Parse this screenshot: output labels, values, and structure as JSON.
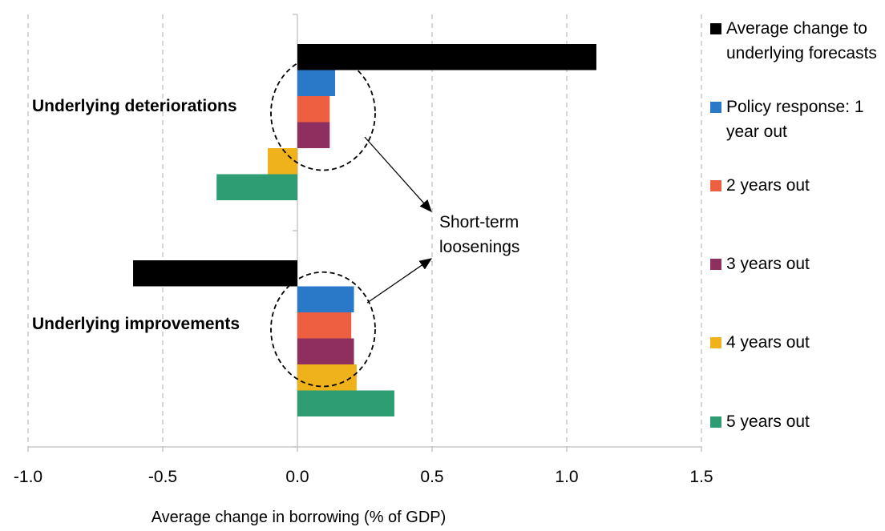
{
  "chart_data": {
    "type": "bar",
    "orientation": "horizontal",
    "title": "",
    "xlabel": "Average change in borrowing (% of GDP)",
    "ylabel": "",
    "xlim": [
      -1.0,
      1.5
    ],
    "xticks": [
      -1.0,
      -0.5,
      0.0,
      0.5,
      1.0,
      1.5
    ],
    "xtick_labels": [
      "-1.0",
      "-0.5",
      "0.0",
      "0.5",
      "1.0",
      "1.5"
    ],
    "grid": "vertical dashed",
    "legend_position": "right",
    "categories": [
      "Underlying deteriorations",
      "Underlying improvements"
    ],
    "series": [
      {
        "name": "Average change to underlying forecasts",
        "color": "#000000",
        "values": [
          1.11,
          -0.61
        ]
      },
      {
        "name": "Policy response: 1 year out",
        "color": "#2a78c8",
        "values": [
          0.14,
          0.21
        ]
      },
      {
        "name": "2 years out",
        "color": "#ee5f41",
        "values": [
          0.12,
          0.2
        ]
      },
      {
        "name": "3 years out",
        "color": "#8e2f5f",
        "values": [
          0.12,
          0.21
        ]
      },
      {
        "name": "4 years out",
        "color": "#f0b21a",
        "values": [
          -0.11,
          0.22
        ]
      },
      {
        "name": "5 years out",
        "color": "#2e9d74",
        "values": [
          -0.3,
          0.36
        ]
      }
    ],
    "annotations": [
      {
        "text": "Short-term loosenings"
      }
    ]
  }
}
